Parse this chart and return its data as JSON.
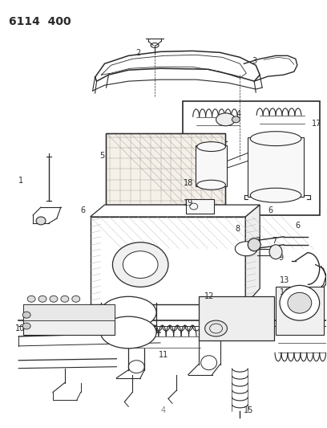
{
  "title": "6114  400",
  "background_color": "#ffffff",
  "line_color": "#2a2a2a",
  "figsize": [
    4.08,
    5.33
  ],
  "dpi": 100,
  "page_number": "4"
}
